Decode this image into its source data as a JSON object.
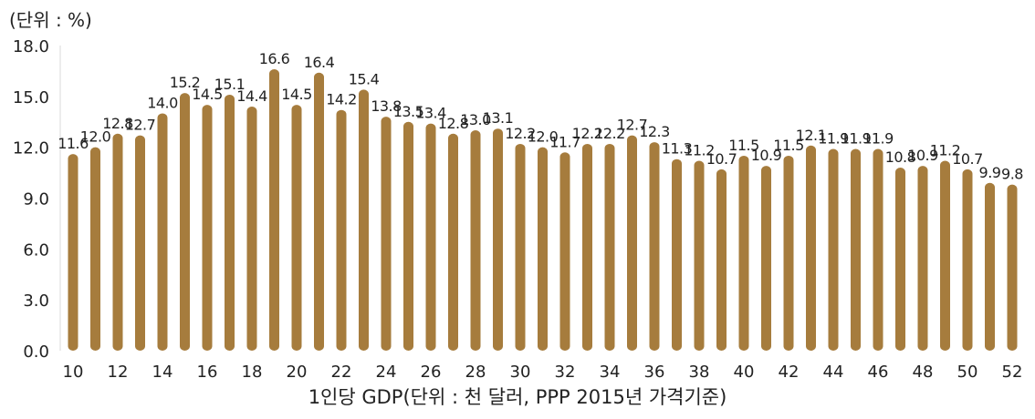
{
  "unit_label": "(단위 : %)",
  "chart_data": {
    "type": "bar",
    "xlabel": "1인당 GDP(단위 : 천 달러, PPP 2015년 가격기준)",
    "ylabel": "",
    "ylim": [
      0,
      18
    ],
    "y_ticks": [
      "0.0",
      "3.0",
      "6.0",
      "9.0",
      "12.0",
      "15.0",
      "18.0"
    ],
    "categories": [
      10,
      11,
      12,
      13,
      14,
      15,
      16,
      17,
      18,
      19,
      20,
      21,
      22,
      23,
      24,
      25,
      26,
      27,
      28,
      29,
      30,
      31,
      32,
      33,
      34,
      35,
      36,
      37,
      38,
      39,
      40,
      41,
      42,
      43,
      44,
      45,
      46,
      47,
      48,
      49,
      50,
      51,
      52
    ],
    "x_tick_labels": [
      "10",
      "12",
      "14",
      "16",
      "18",
      "20",
      "22",
      "24",
      "26",
      "28",
      "30",
      "32",
      "34",
      "36",
      "38",
      "40",
      "42",
      "44",
      "46",
      "48",
      "50",
      "52"
    ],
    "values": [
      11.6,
      12.0,
      12.8,
      12.7,
      14.0,
      15.2,
      14.5,
      15.1,
      14.4,
      16.6,
      14.5,
      16.4,
      14.2,
      15.4,
      13.8,
      13.5,
      13.4,
      12.8,
      13.0,
      13.1,
      12.2,
      12.0,
      11.7,
      12.2,
      12.2,
      12.7,
      12.3,
      11.3,
      11.2,
      10.7,
      11.5,
      10.9,
      11.5,
      12.1,
      11.9,
      11.9,
      11.9,
      10.8,
      10.9,
      11.2,
      10.7,
      9.9,
      9.8
    ],
    "data_labels": [
      "11.6",
      "12.0",
      "12.8",
      "12.7",
      "14.0",
      "15.2",
      "14.5",
      "15.1",
      "14.4",
      "16.6",
      "14.5",
      "16.4",
      "14.2",
      "15.4",
      "13.8",
      "13.5",
      "13.4",
      "12.8",
      "13.0",
      "13.1",
      "12.2",
      "12.0",
      "11.7",
      "12.2",
      "12.2",
      "12.7",
      "12.3",
      "11.3",
      "11.2",
      "10.7",
      "11.5",
      "10.9",
      "11.5",
      "12.1",
      "11.9",
      "11.9",
      "11.9",
      "10.8",
      "10.9",
      "11.2",
      "10.7",
      "9.9",
      "9.8"
    ],
    "bar_color": "#a67c3d",
    "grid": false
  }
}
